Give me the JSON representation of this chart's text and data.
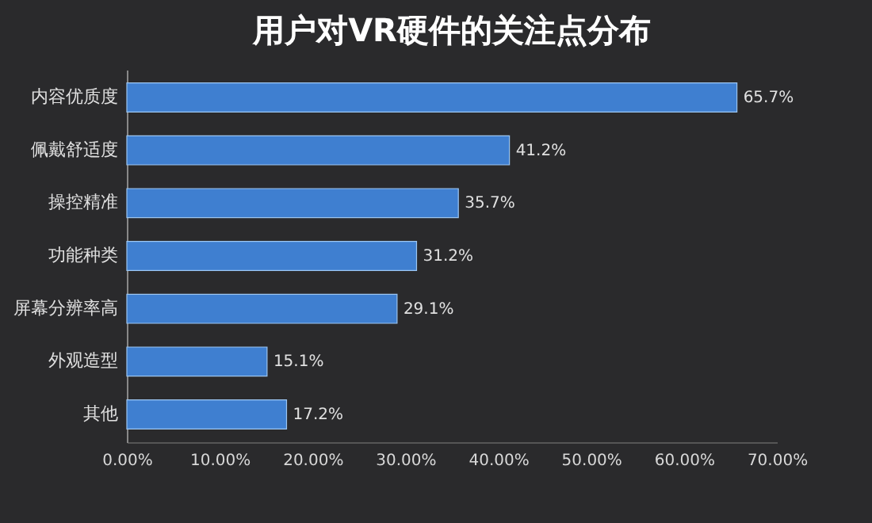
{
  "chart_data": {
    "type": "bar",
    "orientation": "horizontal",
    "title": "用户对VR硬件的关注点分布",
    "categories": [
      "内容优质度",
      "佩戴舒适度",
      "操控精准",
      "功能种类",
      "屏幕分辨率高",
      "外观造型",
      "其他"
    ],
    "values": [
      65.7,
      41.2,
      35.7,
      31.2,
      29.1,
      15.1,
      17.2
    ],
    "value_labels": [
      "65.7%",
      "41.2%",
      "35.7%",
      "31.2%",
      "29.1%",
      "15.1%",
      "17.2%"
    ],
    "color": "#3f7fd0",
    "xlim": [
      0,
      70
    ],
    "xticks": [
      {
        "value": 0,
        "label": "0.00%"
      },
      {
        "value": 10,
        "label": "10.00%"
      },
      {
        "value": 20,
        "label": "20.00%"
      },
      {
        "value": 30,
        "label": "30.00%"
      },
      {
        "value": 40,
        "label": "40.00%"
      },
      {
        "value": 50,
        "label": "50.00%"
      },
      {
        "value": 60,
        "label": "60.00%"
      },
      {
        "value": 70,
        "label": "70.00%"
      }
    ],
    "grid": false
  }
}
